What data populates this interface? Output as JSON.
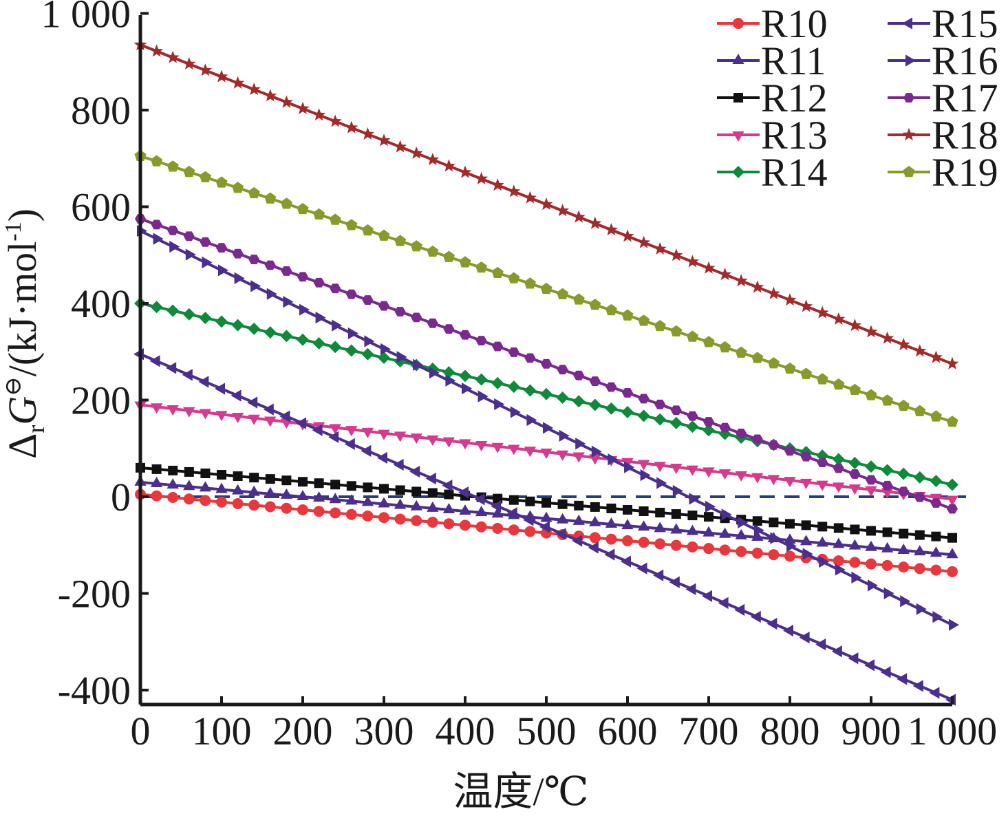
{
  "chart_data": {
    "type": "line",
    "xlabel": "温度/℃",
    "ylabel_parts": {
      "delta": "Δ",
      "sub": "r",
      "G": "G",
      "sup": "⊖",
      "unit": "/(kJ·mol",
      "unit_sup": "-1",
      "close": ")"
    },
    "xlim": [
      0,
      1000
    ],
    "ylim": [
      -420,
      1000
    ],
    "x_ticks": [
      0,
      100,
      200,
      300,
      400,
      500,
      600,
      700,
      800,
      900,
      1000
    ],
    "x_tick_labels": [
      "0",
      "100",
      "200",
      "300",
      "400",
      "500",
      "600",
      "700",
      "800",
      "900",
      "1 000"
    ],
    "y_ticks": [
      -400,
      -200,
      0,
      200,
      400,
      600,
      800,
      1000
    ],
    "y_tick_labels": [
      "-400",
      "-200",
      "0",
      "200",
      "400",
      "600",
      "800",
      "1 000"
    ],
    "reference_line": {
      "y": 0,
      "style": "dashed",
      "color": "#2a3d7a"
    },
    "legend_position": "top-right",
    "series": [
      {
        "name": "R10",
        "color": "#e8383d",
        "marker": "circle",
        "y_start": 5,
        "y_end": -155
      },
      {
        "name": "R11",
        "color": "#4b2f8f",
        "marker": "triangle-up",
        "y_start": 30,
        "y_end": -120
      },
      {
        "name": "R12",
        "color": "#111111",
        "marker": "square",
        "y_start": 60,
        "y_end": -85
      },
      {
        "name": "R13",
        "color": "#d63a8c",
        "marker": "triangle-down",
        "y_start": 190,
        "y_end": -5
      },
      {
        "name": "R14",
        "color": "#0e8a3a",
        "marker": "diamond",
        "y_start": 400,
        "y_end": 25
      },
      {
        "name": "R15",
        "color": "#4b2f8f",
        "marker": "triangle-left",
        "y_start": 295,
        "y_end": -420
      },
      {
        "name": "R16",
        "color": "#4b2f8f",
        "marker": "triangle-right",
        "y_start": 550,
        "y_end": -265
      },
      {
        "name": "R17",
        "color": "#7a2a8f",
        "marker": "hexagon",
        "y_start": 575,
        "y_end": -25
      },
      {
        "name": "R18",
        "color": "#a32a2a",
        "marker": "star",
        "y_start": 935,
        "y_end": 275
      },
      {
        "name": "R19",
        "color": "#8a9a2a",
        "marker": "pentagon",
        "y_start": 705,
        "y_end": 155
      }
    ]
  }
}
